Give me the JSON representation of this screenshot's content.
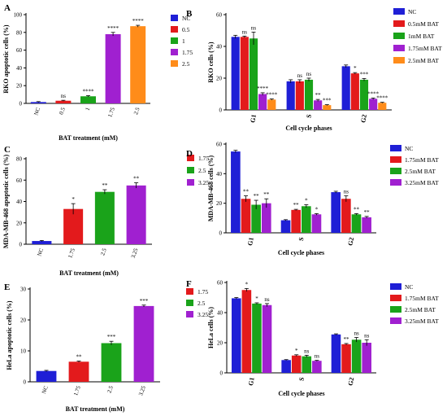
{
  "panels": [
    {
      "id": "A",
      "type": "bar",
      "label": "A",
      "ylabel": "RKO apoptotic cells (%)",
      "xlabel": "BAT treatment  (mM)",
      "ylim": [
        0,
        100
      ],
      "yticks": [
        0,
        20,
        40,
        60,
        80,
        100
      ],
      "categories": [
        "NC",
        "0.5",
        "1",
        "1.75",
        "2.5"
      ],
      "values": [
        1.5,
        3,
        8,
        78,
        87
      ],
      "errors": [
        0.5,
        0.5,
        0.7,
        2,
        1
      ],
      "sig": [
        "",
        "ns",
        "****",
        "****",
        "****"
      ],
      "colors": [
        "#1f1fd6",
        "#e31a1c",
        "#1aa31a",
        "#a020d0",
        "#ff8c1a"
      ],
      "legend": [
        "NC",
        "0.5",
        "1",
        "1.75",
        "2.5"
      ]
    },
    {
      "id": "B",
      "type": "grouped_bar",
      "label": "B",
      "ylabel": "RKO cells (%)",
      "xlabel": "Cell cycle phases",
      "ylim": [
        0,
        60
      ],
      "yticks": [
        0,
        20,
        40,
        60
      ],
      "categories": [
        "G1",
        "S",
        "G2"
      ],
      "series": [
        {
          "name": "NC",
          "values": [
            46,
            18,
            27.5
          ],
          "errors": [
            1,
            1,
            0.8
          ],
          "sig": [
            "",
            "",
            ""
          ]
        },
        {
          "name": "0.5mM BAT",
          "values": [
            46,
            18,
            23
          ],
          "errors": [
            0.5,
            1,
            0.5
          ],
          "sig": [
            "ns",
            "ns",
            "*"
          ]
        },
        {
          "name": "1mM BAT",
          "values": [
            45,
            19,
            19
          ],
          "errors": [
            4,
            1,
            0.8
          ],
          "sig": [
            "ns",
            "ns",
            "***"
          ]
        },
        {
          "name": "1.75mM BAT",
          "values": [
            10,
            6,
            7
          ],
          "errors": [
            0.8,
            0.6,
            0.5
          ],
          "sig": [
            "****",
            "**",
            "****"
          ]
        },
        {
          "name": "2.5mM BAT",
          "values": [
            6.5,
            3,
            4.5
          ],
          "errors": [
            0.4,
            0.3,
            0.3
          ],
          "sig": [
            "****",
            "***",
            "****"
          ]
        }
      ],
      "colors": [
        "#1f1fd6",
        "#e31a1c",
        "#1aa31a",
        "#a020d0",
        "#ff8c1a"
      ]
    },
    {
      "id": "C",
      "type": "bar",
      "label": "C",
      "ylabel": "MDA-MB-468 apoptotic cells (%)",
      "xlabel": "BAT treatment  (mM)",
      "ylim": [
        0,
        80
      ],
      "yticks": [
        0,
        20,
        40,
        60,
        80
      ],
      "categories": [
        "NC",
        "1.75",
        "2.5",
        "3.25"
      ],
      "values": [
        3,
        33,
        49,
        55
      ],
      "errors": [
        0.5,
        5,
        2,
        2.5
      ],
      "sig": [
        "",
        "*",
        "**",
        "**"
      ],
      "colors": [
        "#1f1fd6",
        "#e31a1c",
        "#1aa31a",
        "#a020d0"
      ],
      "legend": [
        "1.75",
        "2.5",
        "3.25"
      ],
      "legend_colors": [
        "#e31a1c",
        "#1aa31a",
        "#a020d0"
      ]
    },
    {
      "id": "D",
      "type": "grouped_bar",
      "label": "D",
      "ylabel": "MDA-MB-468 cells (%)",
      "xlabel": "Cell cycle phases",
      "ylim": [
        0,
        60
      ],
      "yticks": [
        0,
        20,
        40,
        60
      ],
      "categories": [
        "G1",
        "S",
        "G2"
      ],
      "series": [
        {
          "name": "NC",
          "values": [
            55,
            8.5,
            27.5
          ],
          "errors": [
            0.8,
            0.4,
            0.6
          ],
          "sig": [
            "",
            "",
            ""
          ]
        },
        {
          "name": "1.75mM BAT",
          "values": [
            23,
            15.5,
            23
          ],
          "errors": [
            2,
            0.4,
            2
          ],
          "sig": [
            "**",
            "**",
            "ns"
          ]
        },
        {
          "name": "2.5mM BAT",
          "values": [
            19,
            18,
            12.5
          ],
          "errors": [
            3,
            1,
            0.5
          ],
          "sig": [
            "**",
            "*",
            "**"
          ]
        },
        {
          "name": "3.25mM BAT",
          "values": [
            20,
            12.5,
            10.5
          ],
          "errors": [
            3,
            0.5,
            0.6
          ],
          "sig": [
            "**",
            "*",
            "**"
          ]
        }
      ],
      "colors": [
        "#1f1fd6",
        "#e31a1c",
        "#1aa31a",
        "#a020d0"
      ]
    },
    {
      "id": "E",
      "type": "bar",
      "label": "E",
      "ylabel": "HeLa apoptotic cells (%)",
      "xlabel": "BAT treatment  (mM)",
      "ylim": [
        0,
        30
      ],
      "yticks": [
        0,
        10,
        20,
        30
      ],
      "categories": [
        "NC",
        "1.75",
        "2.5",
        "3.25"
      ],
      "values": [
        3.5,
        6.5,
        12.5,
        24.5
      ],
      "errors": [
        0.2,
        0.2,
        0.6,
        0.3
      ],
      "sig": [
        "",
        "**",
        "***",
        "***"
      ],
      "colors": [
        "#1f1fd6",
        "#e31a1c",
        "#1aa31a",
        "#a020d0"
      ],
      "legend": [
        "1.75",
        "2.5",
        "3.25"
      ],
      "legend_colors": [
        "#e31a1c",
        "#1aa31a",
        "#a020d0"
      ]
    },
    {
      "id": "F",
      "type": "grouped_bar",
      "label": "F",
      "ylabel": "HeLa cells (%)",
      "xlabel": "Cell cycle phases",
      "ylim": [
        0,
        60
      ],
      "yticks": [
        0,
        20,
        40,
        60
      ],
      "categories": [
        "G1",
        "S",
        "G2"
      ],
      "series": [
        {
          "name": "NC",
          "values": [
            49.5,
            8.5,
            25.5
          ],
          "errors": [
            0.5,
            0.3,
            0.4
          ],
          "sig": [
            "",
            "",
            ""
          ]
        },
        {
          "name": "1.75mM BAT",
          "values": [
            55,
            11.5,
            19
          ],
          "errors": [
            1,
            0.5,
            0.5
          ],
          "sig": [
            "*",
            "*",
            "**"
          ]
        },
        {
          "name": "2.5mM BAT",
          "values": [
            46,
            11,
            22
          ],
          "errors": [
            0.5,
            0.7,
            1.5
          ],
          "sig": [
            "*",
            "ns",
            "ns"
          ]
        },
        {
          "name": "3.25mM BAT",
          "values": [
            45,
            8,
            20
          ],
          "errors": [
            1,
            0.3,
            2
          ],
          "sig": [
            "ns",
            "ns",
            "ns"
          ]
        }
      ],
      "colors": [
        "#1f1fd6",
        "#e31a1c",
        "#1aa31a",
        "#a020d0"
      ]
    }
  ],
  "chart_data": [
    {
      "type": "bar",
      "title": "A",
      "ylabel": "RKO apoptotic cells (%)",
      "xlabel": "BAT treatment  (mM)",
      "categories": [
        "NC",
        "0.5",
        "1",
        "1.75",
        "2.5"
      ],
      "values": [
        1.5,
        3,
        8,
        78,
        87
      ],
      "ylim": [
        0,
        100
      ]
    },
    {
      "type": "bar",
      "title": "B",
      "ylabel": "RKO cells (%)",
      "xlabel": "Cell cycle phases",
      "categories": [
        "G1",
        "S",
        "G2"
      ],
      "ylim": [
        0,
        60
      ],
      "series": [
        {
          "name": "NC",
          "values": [
            46,
            18,
            27.5
          ]
        },
        {
          "name": "0.5mM BAT",
          "values": [
            46,
            18,
            23
          ]
        },
        {
          "name": "1mM BAT",
          "values": [
            45,
            19,
            19
          ]
        },
        {
          "name": "1.75mM BAT",
          "values": [
            10,
            6,
            7
          ]
        },
        {
          "name": "2.5mM BAT",
          "values": [
            6.5,
            3,
            4.5
          ]
        }
      ]
    },
    {
      "type": "bar",
      "title": "C",
      "ylabel": "MDA-MB-468 apoptotic cells (%)",
      "xlabel": "BAT treatment  (mM)",
      "categories": [
        "NC",
        "1.75",
        "2.5",
        "3.25"
      ],
      "values": [
        3,
        33,
        49,
        55
      ],
      "ylim": [
        0,
        80
      ]
    },
    {
      "type": "bar",
      "title": "D",
      "ylabel": "MDA-MB-468 cells (%)",
      "xlabel": "Cell cycle phases",
      "categories": [
        "G1",
        "S",
        "G2"
      ],
      "ylim": [
        0,
        60
      ],
      "series": [
        {
          "name": "NC",
          "values": [
            55,
            8.5,
            27.5
          ]
        },
        {
          "name": "1.75mM BAT",
          "values": [
            23,
            15.5,
            23
          ]
        },
        {
          "name": "2.5mM BAT",
          "values": [
            19,
            18,
            12.5
          ]
        },
        {
          "name": "3.25mM BAT",
          "values": [
            20,
            12.5,
            10.5
          ]
        }
      ]
    },
    {
      "type": "bar",
      "title": "E",
      "ylabel": "HeLa apoptotic cells (%)",
      "xlabel": "BAT treatment  (mM)",
      "categories": [
        "NC",
        "1.75",
        "2.5",
        "3.25"
      ],
      "values": [
        3.5,
        6.5,
        12.5,
        24.5
      ],
      "ylim": [
        0,
        30
      ]
    },
    {
      "type": "bar",
      "title": "F",
      "ylabel": "HeLa cells (%)",
      "xlabel": "Cell cycle phases",
      "categories": [
        "G1",
        "S",
        "G2"
      ],
      "ylim": [
        0,
        60
      ],
      "series": [
        {
          "name": "NC",
          "values": [
            49.5,
            8.5,
            25.5
          ]
        },
        {
          "name": "1.75mM BAT",
          "values": [
            55,
            11.5,
            19
          ]
        },
        {
          "name": "2.5mM BAT",
          "values": [
            46,
            11,
            22
          ]
        },
        {
          "name": "3.25mM BAT",
          "values": [
            45,
            8,
            20
          ]
        }
      ]
    }
  ]
}
